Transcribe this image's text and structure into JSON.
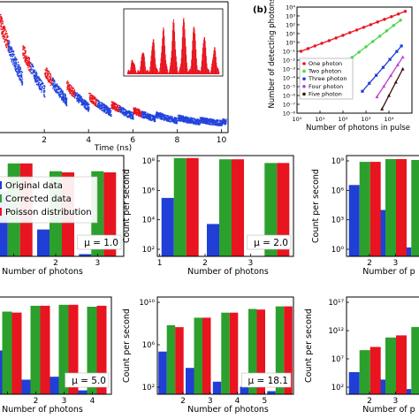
{
  "colors": {
    "original": "#1f3fd6",
    "corrected": "#2ca02c",
    "poisson": "#e8141f",
    "trace_blue": "#2244dd",
    "trace_red": "#e8141f",
    "one": "#e8141f",
    "two": "#4cd64c",
    "three": "#1f3fd6",
    "four": "#c03cd6",
    "five": "#3a0d0d"
  },
  "chart_data": [
    {
      "id": "a",
      "type": "scatter",
      "xlabel": "Time (ns)",
      "xticks": [
        "2",
        "4",
        "6",
        "8",
        "10"
      ],
      "xlim": [
        0,
        10.3
      ],
      "description_series": [
        {
          "name": "envelope",
          "peaks_ns": [
            0.3,
            1.3,
            2.3,
            3.3,
            4.3,
            5.3
          ]
        }
      ],
      "inset": {
        "type": "histogram",
        "peaks": [
          0.2,
          0.35,
          0.55,
          0.72,
          0.85,
          0.9,
          0.78,
          0.6,
          0.4
        ]
      }
    },
    {
      "id": "b",
      "type": "line",
      "panel_label": "(b)",
      "xlabel": "Number of photons in pulse",
      "ylabel": "Number of detecting photons",
      "xscale": "log",
      "yscale": "log",
      "xlim": [
        1,
        100000
      ],
      "ylim": [
        1e-08,
        10000
      ],
      "xticks": [
        "10⁰",
        "10¹",
        "10²",
        "10³",
        "10⁴"
      ],
      "yticks": [
        "10⁴",
        "10³",
        "10²",
        "10¹",
        "10⁰",
        "10⁻¹",
        "10⁻²",
        "10⁻³",
        "10⁻⁴",
        "10⁻⁵",
        "10⁻⁶",
        "10⁻⁷",
        "10⁻⁸"
      ],
      "legend": [
        "One photon",
        "Two photon",
        "Three photon",
        "Four photon",
        "Five photon"
      ],
      "legend_placement": "bottom-left",
      "series": [
        {
          "name": "One photon",
          "color_key": "one",
          "x": [
            1.5,
            3,
            6,
            12,
            25,
            50,
            100,
            200,
            400,
            800,
            1600,
            3200,
            6400,
            12800,
            25600,
            51200
          ],
          "y": [
            0.1,
            0.2,
            0.4,
            0.8,
            1.6,
            3.2,
            6.4,
            12.8,
            25.6,
            51.2,
            102,
            205,
            410,
            819,
            1638,
            3277
          ]
        },
        {
          "name": "Two photon",
          "color_key": "two",
          "x": [
            30,
            60,
            120,
            250,
            500,
            1000,
            2000,
            4000,
            8000,
            16000,
            32000
          ],
          "y": [
            0.0003,
            0.0012,
            0.005,
            0.02,
            0.08,
            0.32,
            1.28,
            5.1,
            20.5,
            82,
            328
          ]
        },
        {
          "name": "Three photon",
          "color_key": "three",
          "x": [
            700,
            1400,
            2800,
            5600,
            11000,
            22000,
            35000
          ],
          "y": [
            3e-06,
            2.4e-05,
            0.00019,
            0.0015,
            0.012,
            0.095,
            0.4
          ]
        },
        {
          "name": "Four photon",
          "color_key": "four",
          "x": [
            3000,
            6000,
            12000,
            24000,
            40000
          ],
          "y": [
            7e-07,
            1.1e-05,
            0.00018,
            0.0029,
            0.022
          ]
        },
        {
          "name": "Five photon",
          "color_key": "five",
          "x": [
            5000,
            10000,
            20000,
            40000
          ],
          "y": [
            3e-08,
            1e-06,
            3.2e-05,
            0.001
          ]
        }
      ]
    },
    {
      "id": "c1",
      "type": "bar",
      "yscale": "log",
      "xlabel": "Number of photons",
      "mu_label": "μ = 1.0",
      "categories": [
        "1",
        "2",
        "3"
      ],
      "xtick_labels": [
        "",
        "2",
        "3"
      ],
      "yticks": [],
      "legend": [
        "Original data",
        "Corrected data",
        "Poisson distribution"
      ],
      "ylim_log": [
        0,
        9
      ],
      "series": [
        {
          "name": "Original data",
          "values_log": [
            5.8,
            2.4,
            0.2
          ]
        },
        {
          "name": "Corrected data",
          "values_log": [
            8.3,
            7.6,
            7.6
          ]
        },
        {
          "name": "Poisson distribution",
          "values_log": [
            8.3,
            7.5,
            7.5
          ]
        }
      ]
    },
    {
      "id": "c2",
      "type": "bar",
      "yscale": "log",
      "xlabel": "Number of photons",
      "ylabel": "Count per second",
      "mu_label": "μ = 2.0",
      "categories": [
        "1",
        "2",
        "3"
      ],
      "xtick_labels": [
        "1",
        "2",
        "3"
      ],
      "yticks": [
        "10⁸",
        "10⁶",
        "10⁴",
        "10²"
      ],
      "ylim_log": [
        0.5,
        8.6
      ],
      "series": [
        {
          "name": "Original data",
          "values_log": [
            5.2,
            3.1,
            0.5
          ]
        },
        {
          "name": "Corrected data",
          "values_log": [
            8.4,
            8.3,
            8.0
          ]
        },
        {
          "name": "Poisson distribution",
          "values_log": [
            8.4,
            8.3,
            8.0
          ]
        }
      ]
    },
    {
      "id": "c3",
      "type": "bar",
      "yscale": "log",
      "xlabel": "Number of p",
      "ylabel": "Count per second",
      "categories": [
        "1",
        "2",
        "3"
      ],
      "xtick_labels": [
        "1",
        "2",
        "3"
      ],
      "yticks": [
        "10⁹",
        "10⁶",
        "10³",
        "10⁰"
      ],
      "ylim_log": [
        -2,
        9.3
      ],
      "series": [
        {
          "name": "Original data",
          "values_log": [
            6.0,
            3.2,
            -1.0
          ]
        },
        {
          "name": "Corrected data",
          "values_log": [
            8.6,
            8.9,
            8.8
          ]
        },
        {
          "name": "Poisson distribution",
          "values_log": [
            8.6,
            8.9,
            8.8
          ]
        }
      ]
    },
    {
      "id": "d1",
      "type": "bar",
      "yscale": "log",
      "xlabel": "Number of photons",
      "mu_label": "μ = 5.0",
      "categories": [
        "1",
        "2",
        "3",
        "4"
      ],
      "xtick_labels": [
        "",
        "2",
        "3",
        "4"
      ],
      "ylim_log": [
        0,
        10
      ],
      "series": [
        {
          "name": "Original data",
          "values_log": [
            4.5,
            1.5,
            1.8,
            0.4
          ]
        },
        {
          "name": "Corrected data",
          "values_log": [
            8.5,
            9.1,
            9.2,
            9.0
          ]
        },
        {
          "name": "Poisson distribution",
          "values_log": [
            8.4,
            9.1,
            9.2,
            9.1
          ]
        }
      ]
    },
    {
      "id": "d2",
      "type": "bar",
      "yscale": "log",
      "xlabel": "Number of photons",
      "ylabel": "Count per second",
      "mu_label": "μ = 18.1",
      "categories": [
        "1",
        "2",
        "3",
        "4",
        "5"
      ],
      "xtick_labels": [
        "1",
        "2",
        "3",
        "4",
        "5"
      ],
      "yticks": [
        "10¹⁰",
        "10⁶",
        "10²"
      ],
      "ylim_log": [
        -1,
        14.5
      ],
      "series": [
        {
          "name": "Original data",
          "values_log": [
            5.8,
            3.2,
            1.0,
            0.2,
            -0.5
          ]
        },
        {
          "name": "Corrected data",
          "values_log": [
            10.0,
            11.2,
            12.0,
            12.6,
            13.0
          ]
        },
        {
          "name": "Poisson distribution",
          "values_log": [
            9.7,
            11.2,
            12.0,
            12.5,
            13.0
          ]
        }
      ]
    },
    {
      "id": "d3",
      "type": "bar",
      "yscale": "log",
      "xlabel": "Number of p",
      "ylabel": "Count per second",
      "categories": [
        "1",
        "2",
        "3"
      ],
      "xtick_labels": [
        "1",
        "2",
        "3"
      ],
      "yticks": [
        "10¹⁷",
        "10¹²",
        "10⁷",
        "10²"
      ],
      "ylim_log": [
        -1,
        17.5
      ],
      "series": [
        {
          "name": "Original data",
          "values_log": [
            3.2,
            1.8,
            0.0
          ]
        },
        {
          "name": "Corrected data",
          "values_log": [
            7.4,
            9.8,
            11.8
          ]
        },
        {
          "name": "Poisson distribution",
          "values_log": [
            8.0,
            10.2,
            12.2
          ]
        }
      ]
    }
  ]
}
